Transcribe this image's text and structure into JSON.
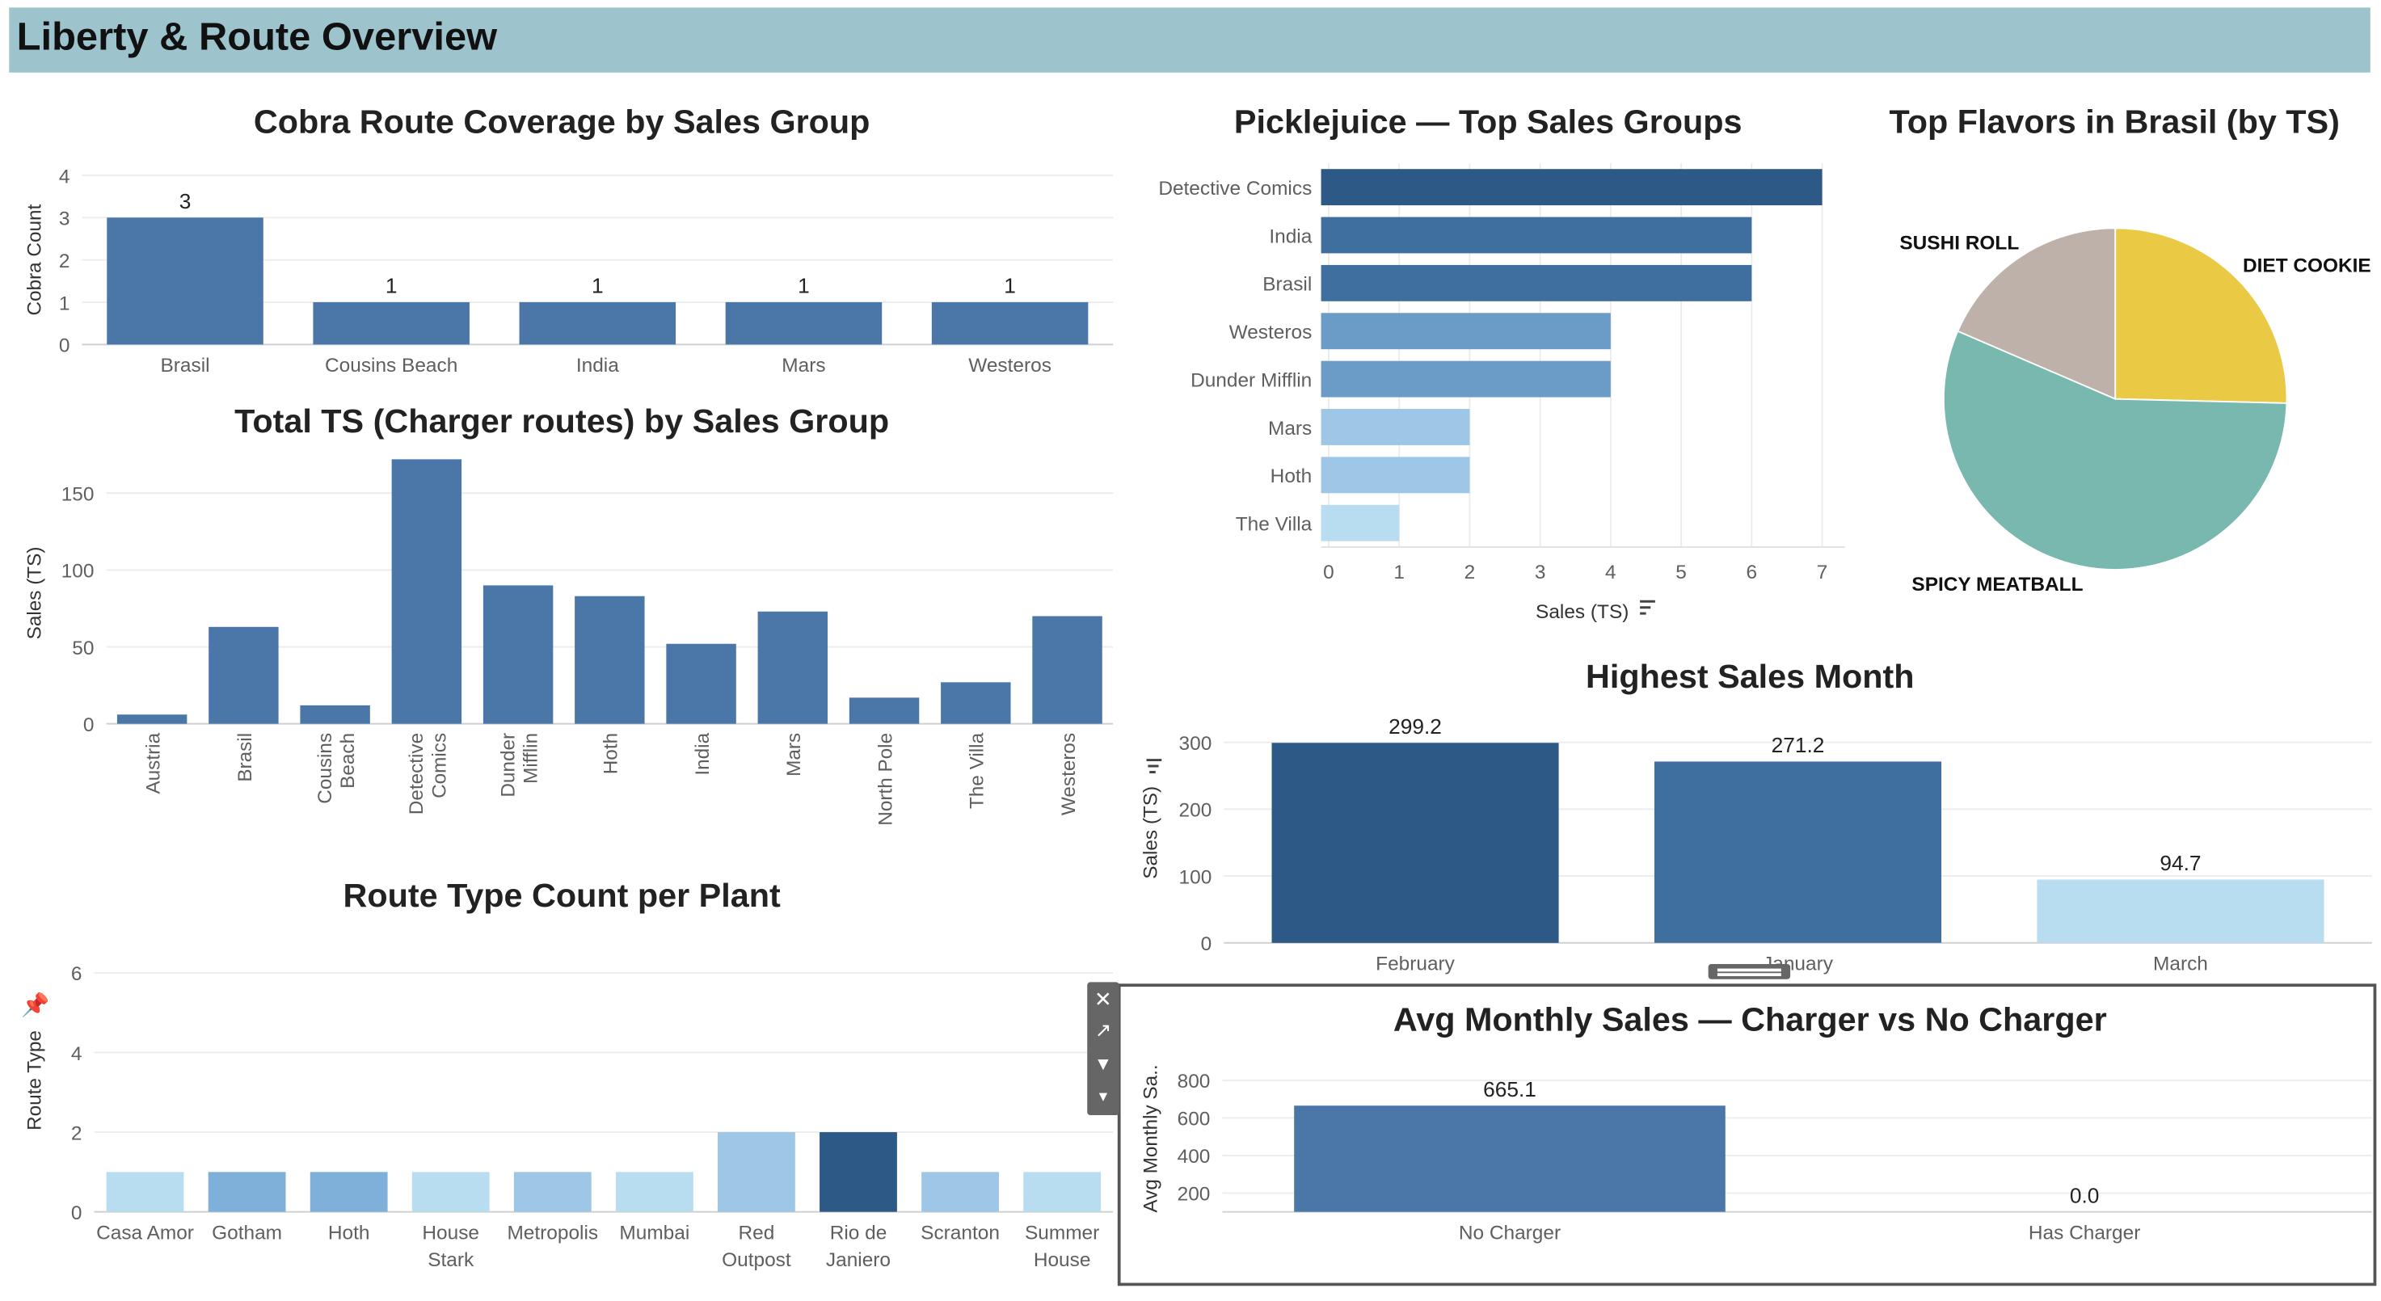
{
  "dashboard": {
    "title": "Liberty & Route Overview"
  },
  "toolbar": {
    "close_icon": "✕",
    "popout_icon": "↗",
    "filter_icon": "▼",
    "more_icon": "▾"
  },
  "colors": {
    "dark": "#2d5986",
    "mid": "#4a76a8",
    "steel": "#3f6f9f",
    "medium": "#6a9cc7",
    "light": "#9ec6e6",
    "pale": "#b8dcf0",
    "yellow": "#eac945",
    "teal": "#78b8ae",
    "taupe": "#bdb1a9"
  },
  "chart_data": [
    {
      "id": "cobra",
      "type": "bar",
      "title": "Cobra Route Coverage by Sales Group",
      "ylabel": "Cobra Count",
      "xlabel": "",
      "ylim": [
        0,
        4
      ],
      "yticks": [
        0,
        1,
        2,
        3,
        4
      ],
      "categories": [
        "Brasil",
        "Cousins Beach",
        "India",
        "Mars",
        "Westeros"
      ],
      "values": [
        3,
        1,
        1,
        1,
        1
      ],
      "data_labels": [
        "3",
        "1",
        "1",
        "1",
        "1"
      ],
      "grid": true
    },
    {
      "id": "total_ts",
      "type": "bar",
      "title": "Total TS (Charger routes) by Sales Group",
      "ylabel": "Sales (TS)",
      "xlabel": "",
      "ylim": [
        0,
        170
      ],
      "yticks": [
        0,
        50,
        100,
        150
      ],
      "categories": [
        "Austria",
        "Brasil",
        "Cousins Beach",
        "Detective Comics",
        "Dunder Mifflin",
        "Hoth",
        "India",
        "Mars",
        "North Pole",
        "The Villa",
        "Westeros"
      ],
      "category_lines": [
        [
          "Austria"
        ],
        [
          "Brasil"
        ],
        [
          "Cousins",
          "Beach"
        ],
        [
          "Detective",
          "Comics"
        ],
        [
          "Dunder",
          "Mifflin"
        ],
        [
          "Hoth"
        ],
        [
          "India"
        ],
        [
          "Mars"
        ],
        [
          "North Pole"
        ],
        [
          "The Villa"
        ],
        [
          "Westeros"
        ]
      ],
      "values": [
        6,
        63,
        12,
        172,
        90,
        83,
        52,
        73,
        17,
        27,
        70
      ],
      "grid": true
    },
    {
      "id": "route_type",
      "type": "bar",
      "title": "Route Type Count per Plant",
      "ylabel": "Route Type",
      "xlabel": "",
      "ylim": [
        0,
        6.6
      ],
      "yticks": [
        0,
        2,
        4,
        6
      ],
      "categories": [
        "Casa Amor",
        "Gotham",
        "Hoth",
        "House Stark",
        "Metropolis",
        "Mumbai",
        "Red Outpost",
        "Rio de Janiero",
        "Scranton",
        "Summer House"
      ],
      "category_lines": [
        [
          "Casa Amor"
        ],
        [
          "Gotham"
        ],
        [
          "Hoth"
        ],
        [
          "House",
          "Stark"
        ],
        [
          "Metropolis"
        ],
        [
          "Mumbai"
        ],
        [
          "Red",
          "Outpost"
        ],
        [
          "Rio de",
          "Janiero"
        ],
        [
          "Scranton"
        ],
        [
          "Summer",
          "House"
        ]
      ],
      "values": [
        1,
        1,
        1,
        1,
        1,
        1,
        2,
        2,
        1,
        1
      ],
      "grid": true
    },
    {
      "id": "picklejuice",
      "type": "bar",
      "orientation": "horizontal",
      "title": "Picklejuice — Top Sales Groups",
      "xlabel": "Sales (TS)",
      "ylabel": "",
      "xlim": [
        0,
        7
      ],
      "xticks": [
        0,
        1,
        2,
        3,
        4,
        5,
        6,
        7
      ],
      "categories": [
        "Detective Comics",
        "India",
        "Brasil",
        "Westeros",
        "Dunder Mifflin",
        "Mars",
        "Hoth",
        "The Villa"
      ],
      "values": [
        7,
        6,
        6,
        4,
        4,
        2,
        2,
        1
      ],
      "grid": true
    },
    {
      "id": "flavors",
      "type": "pie",
      "title": "Top Flavors in Brasil (by TS)",
      "categories": [
        "DIET COOKIE",
        "SPICY MEATBALL",
        "SUSHI ROLL"
      ],
      "values": [
        25.4,
        56.1,
        18.5
      ]
    },
    {
      "id": "highest_month",
      "type": "bar",
      "title": "Highest Sales Month",
      "ylabel": "Sales (TS)",
      "xlabel": "",
      "ylim": [
        0,
        330
      ],
      "yticks": [
        0,
        100,
        200,
        300
      ],
      "categories": [
        "February",
        "January",
        "March"
      ],
      "values": [
        299.2,
        271.2,
        94.7
      ],
      "data_labels": [
        "299.2",
        "271.2",
        "94.7"
      ],
      "grid": true
    },
    {
      "id": "avg_monthly",
      "type": "bar",
      "title": "Avg Monthly Sales — Charger vs No Charger",
      "ylabel": "Avg Monthly Sa..",
      "xlabel": "",
      "ylim": [
        100,
        880
      ],
      "yticks": [
        200,
        400,
        600,
        800
      ],
      "categories": [
        "No Charger",
        "Has Charger"
      ],
      "values": [
        665.1,
        0.0
      ],
      "data_labels": [
        "665.1",
        "0.0"
      ],
      "grid": true
    }
  ]
}
